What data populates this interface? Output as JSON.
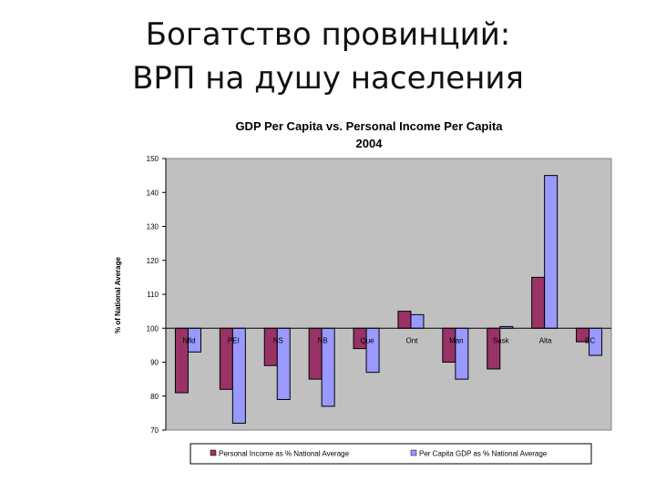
{
  "slide": {
    "title_line1": "Богатство провинций:",
    "title_line2": "ВРП на душу населения"
  },
  "chart_data": {
    "type": "bar",
    "title": "GDP Per Capita vs. Personal Income Per Capita",
    "subtitle": "2004",
    "xlabel": "",
    "ylabel": "% of National Average",
    "ylim": [
      70,
      150
    ],
    "yticks": [
      70,
      80,
      90,
      100,
      110,
      120,
      130,
      140,
      150
    ],
    "baseline": 100,
    "grid": false,
    "legend_position": "bottom",
    "categories": [
      "Nfld",
      "PEI",
      "NS",
      "NB",
      "Que",
      "Ont",
      "Man",
      "Sask",
      "Alta",
      "BC"
    ],
    "series": [
      {
        "name": "Personal Income as % National Average",
        "color": "#993366",
        "values": [
          81,
          82,
          89,
          85,
          94,
          105,
          90,
          88,
          115,
          96
        ]
      },
      {
        "name": "Per Capita GDP as % National Average",
        "color": "#9999ff",
        "values": [
          93,
          72,
          79,
          77,
          87,
          104,
          85,
          100.5,
          145,
          92
        ]
      }
    ]
  }
}
